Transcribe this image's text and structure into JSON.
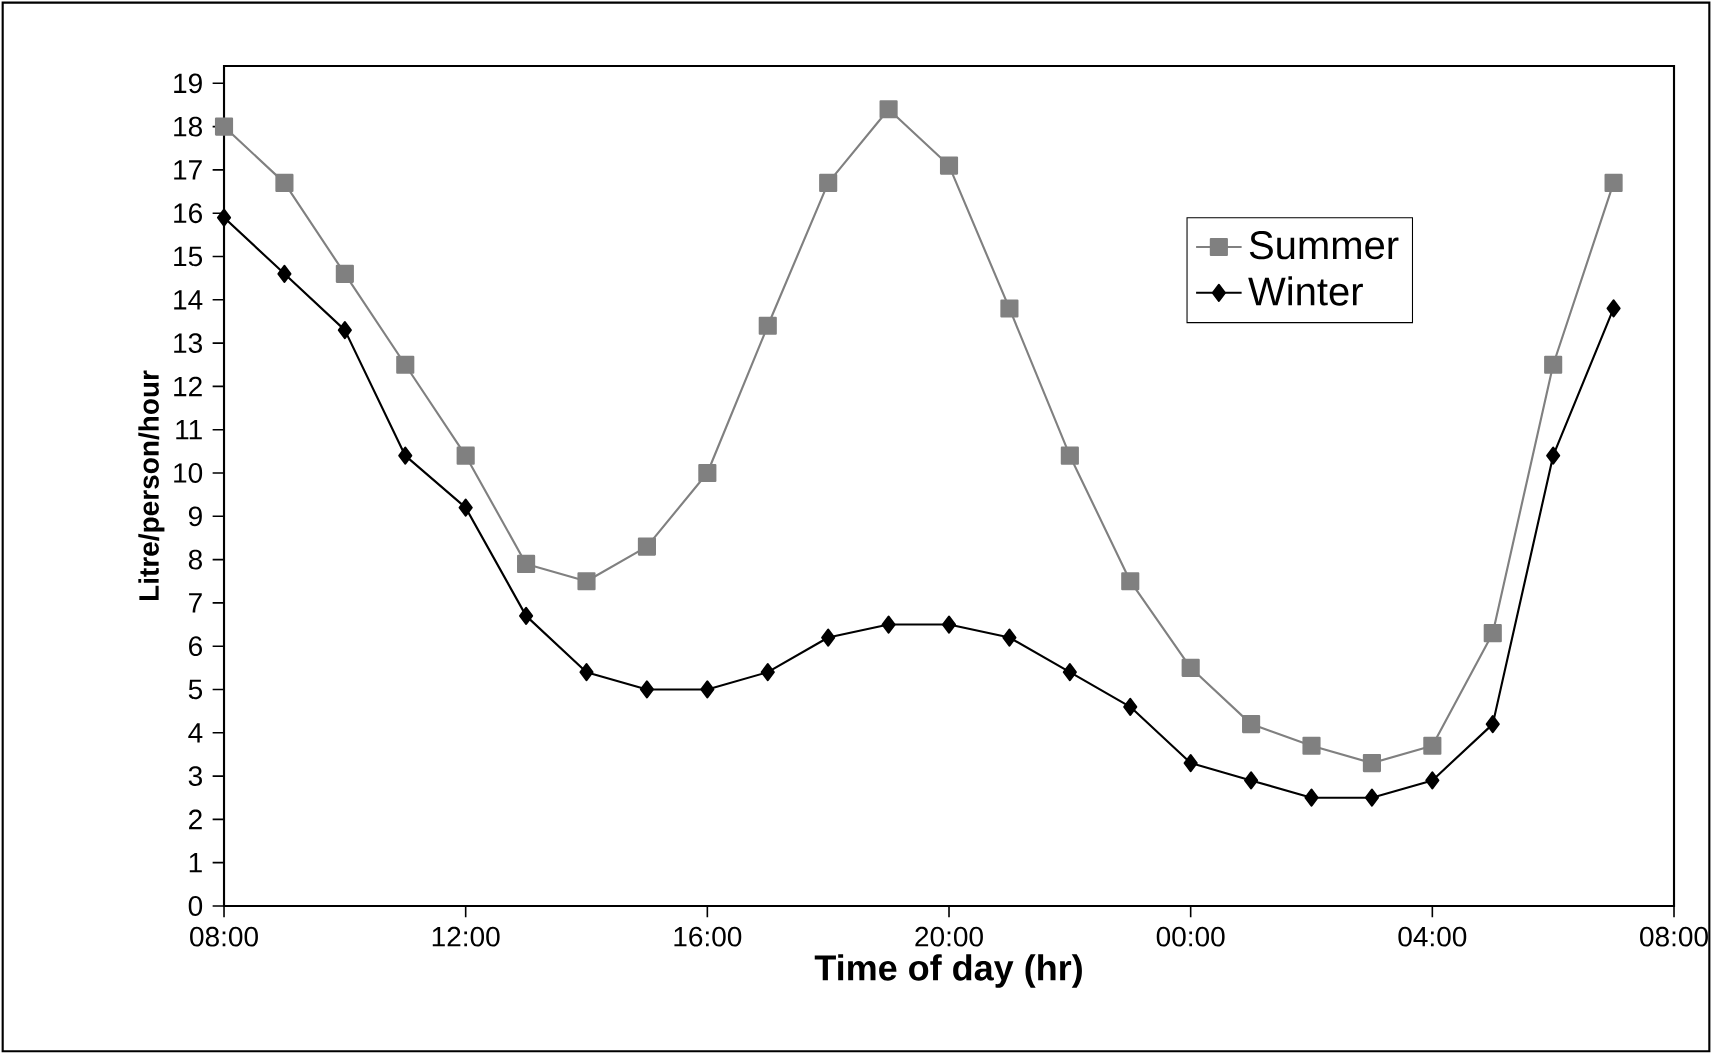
{
  "chart_data": {
    "type": "line",
    "xlabel": "Time of day (hr)",
    "ylabel": "Litre/person/hour",
    "x": [
      "2000-01-01T08:00",
      "2000-01-01T09:00",
      "2000-01-01T10:00",
      "2000-01-01T11:00",
      "2000-01-01T12:00",
      "2000-01-01T13:00",
      "2000-01-01T14:00",
      "2000-01-01T15:00",
      "2000-01-01T16:00",
      "2000-01-01T17:00",
      "2000-01-01T18:00",
      "2000-01-01T19:00",
      "2000-01-01T20:00",
      "2000-01-01T21:00",
      "2000-01-01T22:00",
      "2000-01-01T23:00",
      "2000-01-02T00:00",
      "2000-01-02T01:00",
      "2000-01-02T02:00",
      "2000-01-02T03:00",
      "2000-01-02T04:00",
      "2000-01-02T05:00",
      "2000-01-02T06:00",
      "2000-01-02T07:00"
    ],
    "series": [
      {
        "name": "Summer",
        "color": "#808080",
        "marker": "square",
        "values": [
          18,
          16.7,
          14.6,
          12.5,
          10.4,
          7.9,
          7.5,
          8.3,
          10,
          13.4,
          16.7,
          18.4,
          17.1,
          13.8,
          10.4,
          7.5,
          5.5,
          4.2,
          3.7,
          3.3,
          3.7,
          6.3,
          12.5,
          16.7
        ]
      },
      {
        "name": "Winter",
        "color": "#000000",
        "marker": "diamond",
        "values": [
          15.9,
          14.6,
          13.3,
          10.4,
          9.2,
          6.7,
          5.4,
          5.0,
          5.0,
          5.4,
          6.2,
          6.5,
          6.5,
          6.2,
          5.4,
          4.6,
          3.3,
          2.9,
          2.5,
          2.5,
          2.9,
          4.2,
          10.4,
          13.8
        ]
      }
    ],
    "xlim": [
      "2000-01-01T08:00",
      "2000-01-02T08:00"
    ],
    "xticks": [
      {
        "value": "2000-01-01T08:00",
        "label": "08:00"
      },
      {
        "value": "2000-01-01T12:00",
        "label": "12:00"
      },
      {
        "value": "2000-01-01T16:00",
        "label": "16:00"
      },
      {
        "value": "2000-01-01T20:00",
        "label": "20:00"
      },
      {
        "value": "2000-01-02T00:00",
        "label": "00:00"
      },
      {
        "value": "2000-01-02T04:00",
        "label": "04:00"
      },
      {
        "value": "2000-01-02T08:00",
        "label": "08:00"
      }
    ],
    "ylim": [
      0,
      19.4
    ],
    "yticks": [
      0,
      1,
      2,
      3,
      4,
      5,
      6,
      7,
      8,
      9,
      10,
      11,
      12,
      13,
      14,
      15,
      16,
      17,
      18,
      19
    ],
    "grid": false,
    "legend": "top right",
    "line_style": "solid"
  }
}
